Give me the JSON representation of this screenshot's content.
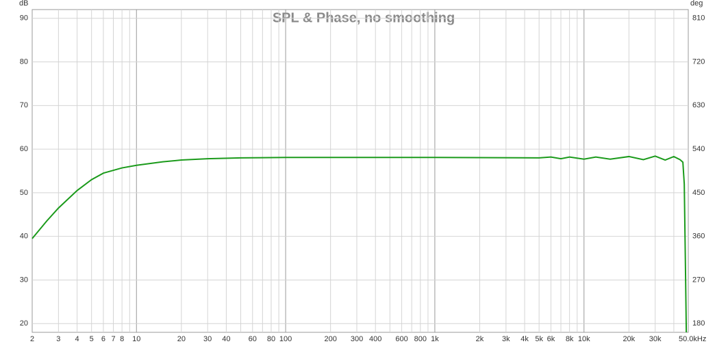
{
  "chart_data": {
    "type": "line",
    "title": "SPL & Phase, no smoothing",
    "y_label": "dB",
    "y2_label": "deg",
    "log_x": true,
    "grid": true,
    "xlim": [
      2,
      50000
    ],
    "ylim": [
      18,
      92
    ],
    "y2lim": [
      162,
      828
    ],
    "xticks": [
      2,
      3,
      4,
      5,
      6,
      7,
      8,
      10,
      20,
      30,
      40,
      60,
      80,
      100,
      200,
      300,
      400,
      600,
      800,
      {
        "value": 1000,
        "label": "1k"
      },
      {
        "value": 2000,
        "label": "2k"
      },
      {
        "value": 3000,
        "label": "3k"
      },
      {
        "value": 4000,
        "label": "4k"
      },
      {
        "value": 5000,
        "label": "5k"
      },
      {
        "value": 6000,
        "label": "6k"
      },
      {
        "value": 8000,
        "label": "8k"
      },
      {
        "value": 10000,
        "label": "10k"
      },
      {
        "value": 20000,
        "label": "20k"
      },
      {
        "value": 30000,
        "label": "30k"
      },
      {
        "value": 50000,
        "label": "50.0kHz"
      }
    ],
    "x_minor_ticks": [
      9,
      50,
      70,
      90,
      500,
      700,
      900,
      7000,
      9000,
      40000
    ],
    "yticks": [
      20,
      30,
      40,
      50,
      60,
      70,
      80,
      90
    ],
    "y2ticks": [
      180,
      270,
      360,
      450,
      540,
      630,
      720,
      810
    ],
    "x": [
      2,
      2.5,
      3,
      4,
      5,
      6,
      8,
      10,
      15,
      20,
      30,
      50,
      100,
      1000,
      5000,
      6000,
      7000,
      8000,
      10000,
      12000,
      15000,
      20000,
      25000,
      30000,
      35000,
      40000,
      44000,
      46000,
      47000,
      48000,
      48500
    ],
    "series": [
      {
        "name": "SPL",
        "color": "#1a9a1a",
        "values": [
          39.5,
          43.5,
          46.5,
          50.5,
          53,
          54.5,
          55.7,
          56.3,
          57.1,
          57.5,
          57.8,
          58,
          58.1,
          58.1,
          58,
          58.2,
          57.8,
          58.2,
          57.7,
          58.2,
          57.7,
          58.3,
          57.6,
          58.4,
          57.5,
          58.3,
          57.6,
          57,
          52,
          30,
          18
        ]
      }
    ]
  }
}
